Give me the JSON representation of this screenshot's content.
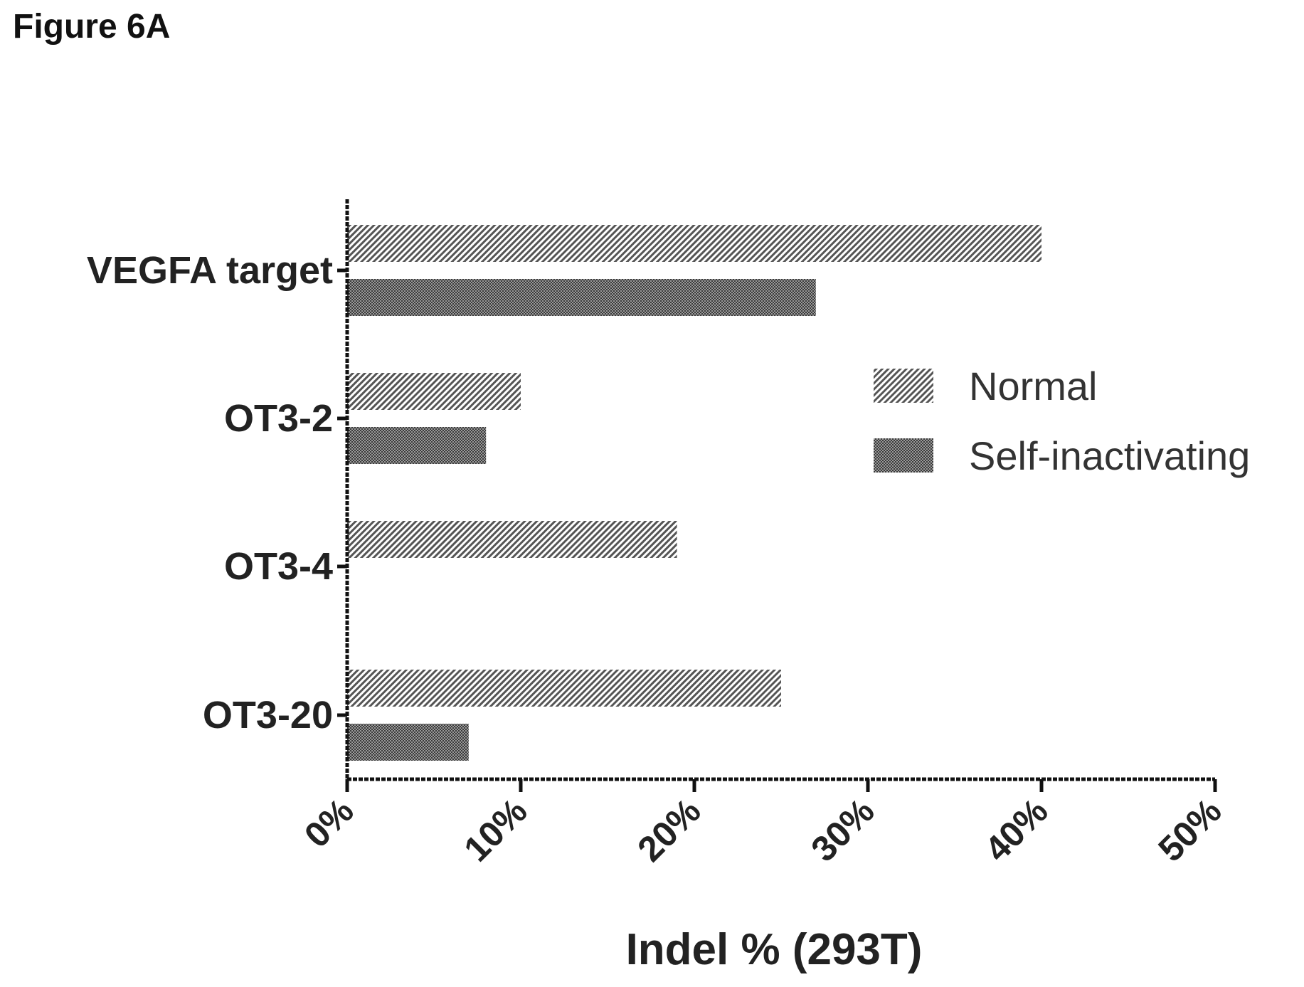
{
  "figure_label": "Figure 6A",
  "chart_data": {
    "type": "bar",
    "orientation": "horizontal",
    "categories": [
      "VEGFA target",
      "OT3-2",
      "OT3-4",
      "OT3-20"
    ],
    "series": [
      {
        "name": "Normal",
        "values": [
          40,
          10,
          19,
          25
        ],
        "pattern": "hatch",
        "color": "#555555"
      },
      {
        "name": "Self-inactivating",
        "values": [
          27,
          8,
          0,
          7
        ],
        "pattern": "crosshatch",
        "color": "#333333"
      }
    ],
    "xlabel": "Indel % (293T)",
    "ylabel": "",
    "xlim": [
      0,
      50
    ],
    "x_ticks": [
      0,
      10,
      20,
      30,
      40,
      50
    ],
    "x_tick_labels": [
      "0%",
      "10%",
      "20%",
      "30%",
      "40%",
      "50%"
    ],
    "grid": false,
    "legend_position": "right-middle"
  }
}
